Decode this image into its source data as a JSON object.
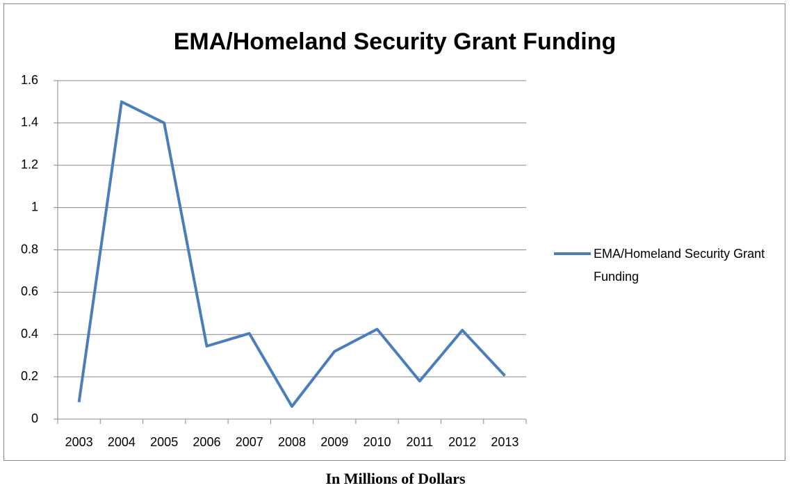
{
  "chart_data": {
    "type": "line",
    "title": "EMA/Homeland Security Grant Funding",
    "categories": [
      "2003",
      "2004",
      "2005",
      "2006",
      "2007",
      "2008",
      "2009",
      "2010",
      "2011",
      "2012",
      "2013"
    ],
    "series": [
      {
        "name": "EMA/Homeland Security Grant Funding",
        "color": "#4a7ebb",
        "values": [
          0.08,
          1.5,
          1.4,
          0.345,
          0.405,
          0.06,
          0.32,
          0.425,
          0.18,
          0.42,
          0.205
        ]
      }
    ],
    "ylim": [
      0,
      1.6
    ],
    "yticks": [
      0,
      0.2,
      0.4,
      0.6,
      0.8,
      1,
      1.2,
      1.4,
      1.6
    ],
    "grid": true,
    "legend": "right",
    "caption": "In Millions of Dollars"
  }
}
